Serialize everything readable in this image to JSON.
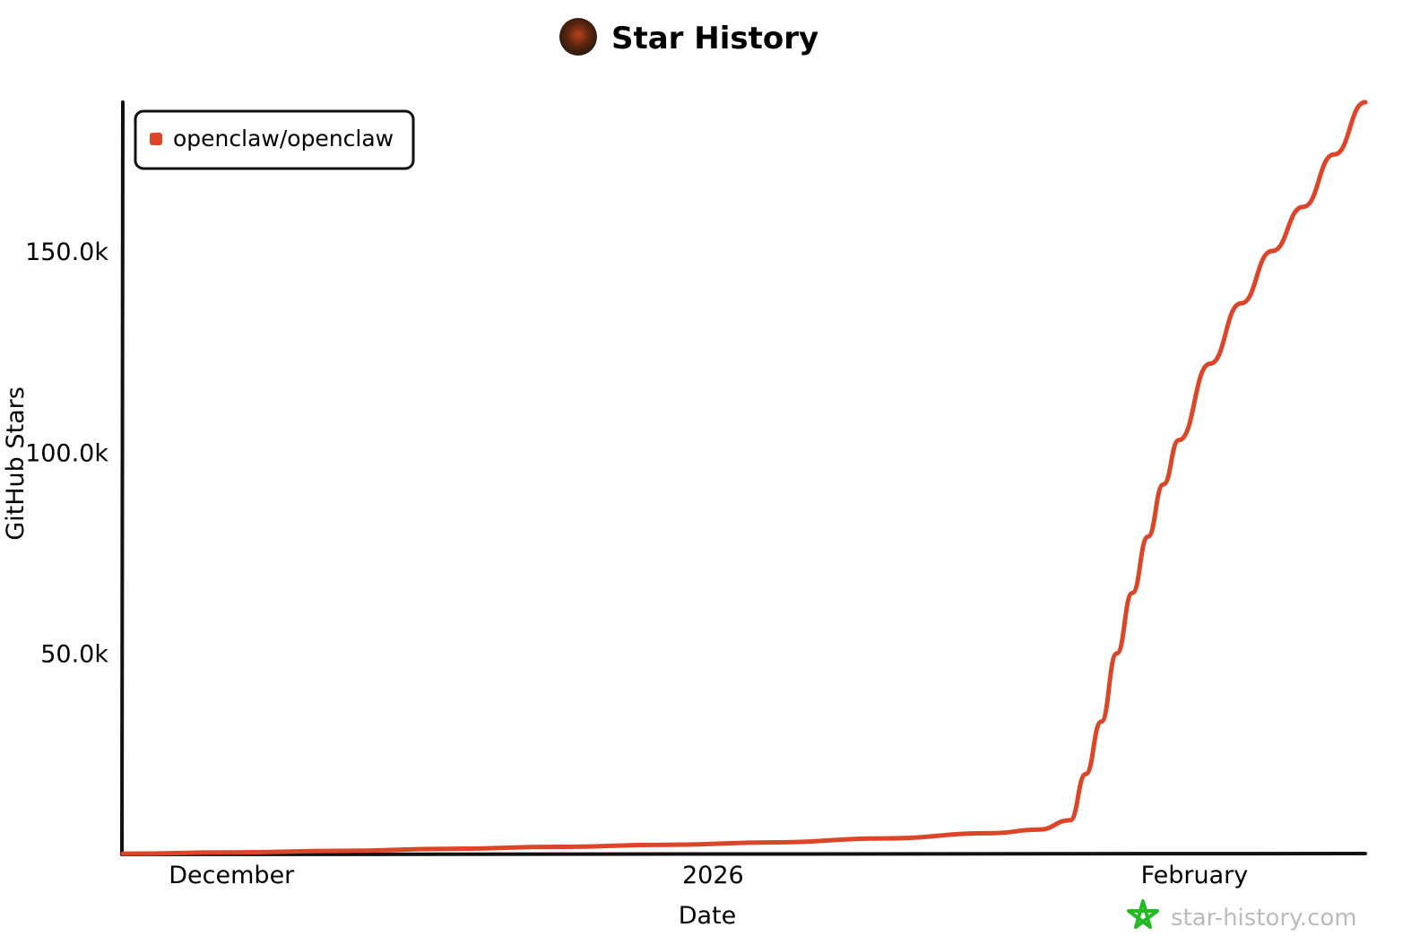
{
  "chart_data": {
    "type": "line",
    "title": "Star History",
    "xlabel": "Date",
    "ylabel": "GitHub Stars",
    "x_range": [
      "2025-11-24",
      "2026-02-12"
    ],
    "ylim": [
      0,
      187000
    ],
    "x_ticks": [
      {
        "date": "2025-12-01",
        "label": "December"
      },
      {
        "date": "2026-01-01",
        "label": "2026"
      },
      {
        "date": "2026-02-01",
        "label": "February"
      }
    ],
    "y_ticks": [
      {
        "value": 50000,
        "label": "50.0k"
      },
      {
        "value": 100000,
        "label": "100.0k"
      },
      {
        "value": 150000,
        "label": "150.0k"
      }
    ],
    "legend": {
      "placement": "top-left"
    },
    "grid": false,
    "series": [
      {
        "name": "openclaw/openclaw",
        "color": "#dd4528",
        "points": [
          [
            "2025-11-24",
            200
          ],
          [
            "2025-12-01",
            500
          ],
          [
            "2025-12-08",
            900
          ],
          [
            "2025-12-15",
            1400
          ],
          [
            "2025-12-22",
            1900
          ],
          [
            "2025-12-29",
            2400
          ],
          [
            "2026-01-05",
            3000
          ],
          [
            "2026-01-12",
            4000
          ],
          [
            "2026-01-19",
            5300
          ],
          [
            "2026-01-22",
            6200
          ],
          [
            "2026-01-24",
            8500
          ],
          [
            "2026-01-25",
            20000
          ],
          [
            "2026-01-26",
            33000
          ],
          [
            "2026-01-27",
            50000
          ],
          [
            "2026-01-28",
            65000
          ],
          [
            "2026-01-29",
            79000
          ],
          [
            "2026-01-30",
            92000
          ],
          [
            "2026-01-31",
            103000
          ],
          [
            "2026-02-02",
            122000
          ],
          [
            "2026-02-04",
            137000
          ],
          [
            "2026-02-06",
            150000
          ],
          [
            "2026-02-08",
            161000
          ],
          [
            "2026-02-10",
            174000
          ],
          [
            "2026-02-12",
            187000
          ]
        ]
      }
    ]
  },
  "watermark": {
    "text": "star-history.com",
    "icon": "star-icon",
    "color": "#22bb22"
  }
}
